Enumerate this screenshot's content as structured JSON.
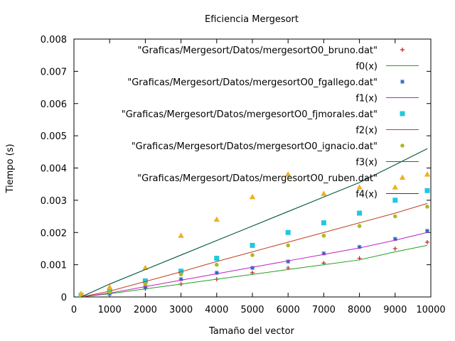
{
  "chart_data": {
    "type": "scatter",
    "title": "Eficiencia Mergesort",
    "xlabel": "Tamaño del vector",
    "ylabel": "Tiempo (s)",
    "xlim": [
      0,
      10000
    ],
    "ylim": [
      0,
      0.008
    ],
    "grid": false,
    "legend_position": "top-right",
    "x_ticks": [
      "0",
      "1000",
      "2000",
      "3000",
      "4000",
      "5000",
      "6000",
      "7000",
      "8000",
      "9000",
      "10000"
    ],
    "y_ticks": [
      "0",
      "0.001",
      "0.002",
      "0.003",
      "0.004",
      "0.005",
      "0.006",
      "0.007",
      "0.008"
    ],
    "x": [
      200,
      1000,
      2000,
      3000,
      4000,
      5000,
      6000,
      7000,
      8000,
      9000,
      9900
    ],
    "series": [
      {
        "name": "\"Graficas/Mergesort/Datos/mergesortO0_bruno.dat\"",
        "kind": "points",
        "marker": "plus",
        "color": "#c02020",
        "values": [
          5e-05,
          0.0001,
          0.00025,
          0.0004,
          0.00055,
          0.00075,
          0.0009,
          0.00105,
          0.0012,
          0.0015,
          0.0017
        ]
      },
      {
        "name": "f0(x)",
        "kind": "line",
        "color": "#22a022",
        "values": [
          0.0,
          0.0001,
          0.00025,
          0.0004,
          0.00055,
          0.0007,
          0.00085,
          0.001,
          0.00115,
          0.0014,
          0.0016
        ]
      },
      {
        "name": "\"Graficas/Mergesort/Datos/mergesortO0_fgallego.dat\"",
        "kind": "points",
        "marker": "star",
        "color": "#2060c0",
        "values": [
          5e-05,
          0.0001,
          0.0003,
          0.00055,
          0.00075,
          0.0009,
          0.0011,
          0.00135,
          0.00155,
          0.0018,
          0.00205
        ]
      },
      {
        "name": "f1(x)",
        "kind": "line",
        "color": "#c020c0",
        "values": [
          0.0,
          0.00012,
          0.00032,
          0.00052,
          0.00072,
          0.00092,
          0.00112,
          0.00132,
          0.00152,
          0.00176,
          0.002
        ]
      },
      {
        "name": "\"Graficas/Mergesort/Datos/mergesortO0_fjmorales.dat\"",
        "kind": "points",
        "marker": "square",
        "color": "#20c8e0",
        "values": [
          5e-05,
          0.0002,
          0.0005,
          0.0008,
          0.0012,
          0.0016,
          0.002,
          0.0023,
          0.0026,
          0.003,
          0.0033
        ]
      },
      {
        "name": "f2(x)",
        "kind": "line",
        "color": "#c04020",
        "values": [
          0.0,
          0.00018,
          0.00048,
          0.00078,
          0.0011,
          0.0014,
          0.0017,
          0.002,
          0.0023,
          0.0026,
          0.0029
        ]
      },
      {
        "name": "\"Graficas/Mergesort/Datos/mergesortO0_ignacio.dat\"",
        "kind": "points",
        "marker": "circle",
        "color": "#b0b820",
        "values": [
          5e-05,
          0.00015,
          0.0004,
          0.0007,
          0.001,
          0.0013,
          0.0016,
          0.0019,
          0.0022,
          0.0025,
          0.0028
        ]
      },
      {
        "name": "f3(x)",
        "kind": "line",
        "color": "#1a6a6a",
        "values": [
          0.0,
          0.0004,
          0.00085,
          0.0013,
          0.00175,
          0.0022,
          0.00265,
          0.0031,
          0.00355,
          0.0041,
          0.0046
        ]
      },
      {
        "name": "\"Graficas/Mergesort/Datos/mergesortO0_ruben.dat\"",
        "kind": "points",
        "marker": "triangle",
        "color": "#f0b020",
        "values": [
          0.0001,
          0.0003,
          0.0009,
          0.0019,
          0.0024,
          0.0031,
          0.0038,
          0.0032,
          0.0034,
          0.0034,
          0.0038
        ]
      },
      {
        "name": "f4(x)",
        "kind": "line",
        "color": "#0a5a3a",
        "values": [
          0.0,
          0.0004,
          0.00085,
          0.0013,
          0.00175,
          0.0022,
          0.00265,
          0.0031,
          0.00355,
          0.0041,
          0.0046
        ]
      }
    ]
  }
}
